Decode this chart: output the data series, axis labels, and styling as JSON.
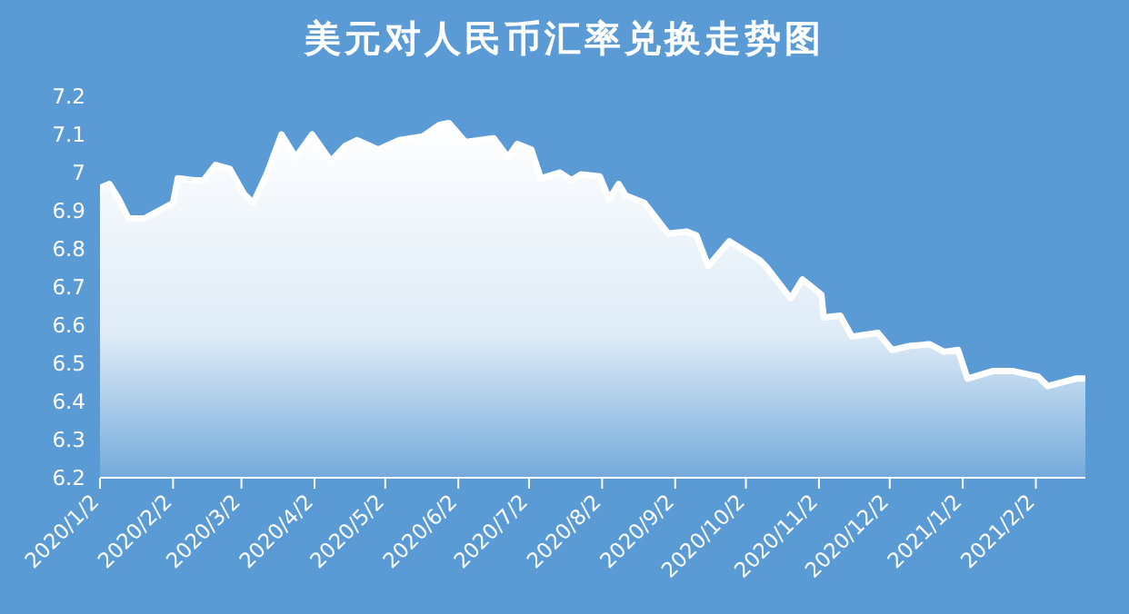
{
  "chart_data": {
    "type": "area",
    "title": "美元对人民币汇率兑换走势图",
    "x": [
      "2020-01-02",
      "2020-01-06",
      "2020-01-10",
      "2020-01-14",
      "2020-01-21",
      "2020-02-02",
      "2020-02-04",
      "2020-02-11",
      "2020-02-15",
      "2020-02-20",
      "2020-02-26",
      "2020-03-03",
      "2020-03-07",
      "2020-03-13",
      "2020-03-19",
      "2020-03-25",
      "2020-04-01",
      "2020-04-09",
      "2020-04-15",
      "2020-04-20",
      "2020-04-29",
      "2020-05-08",
      "2020-05-18",
      "2020-05-25",
      "2020-05-29",
      "2020-06-05",
      "2020-06-11",
      "2020-06-17",
      "2020-06-23",
      "2020-06-27",
      "2020-07-03",
      "2020-07-07",
      "2020-07-15",
      "2020-07-20",
      "2020-07-24",
      "2020-08-01",
      "2020-08-05",
      "2020-08-09",
      "2020-08-12",
      "2020-08-20",
      "2020-08-30",
      "2020-09-07",
      "2020-09-11",
      "2020-09-16",
      "2020-09-25",
      "2020-10-08",
      "2020-10-11",
      "2020-10-21",
      "2020-10-26",
      "2020-11-03",
      "2020-11-04",
      "2020-11-11",
      "2020-11-16",
      "2020-11-27",
      "2020-12-03",
      "2020-12-10",
      "2020-12-19",
      "2020-12-25",
      "2020-12-31",
      "2021-01-04",
      "2021-01-15",
      "2021-01-23",
      "2021-02-03",
      "2021-02-07",
      "2021-02-19",
      "2021-02-23"
    ],
    "series": [
      {
        "color": "#ffffff",
        "values": [
          6.96,
          6.97,
          6.93,
          6.88,
          6.88,
          6.92,
          6.985,
          6.98,
          6.98,
          7.02,
          7.01,
          6.945,
          6.92,
          7.0,
          7.1,
          7.04,
          7.1,
          7.03,
          7.07,
          7.085,
          7.06,
          7.085,
          7.095,
          7.125,
          7.13,
          7.08,
          7.085,
          7.09,
          7.04,
          7.075,
          7.06,
          6.985,
          7.0,
          6.98,
          6.995,
          6.99,
          6.93,
          6.97,
          6.94,
          6.92,
          6.84,
          6.845,
          6.835,
          6.755,
          6.82,
          6.77,
          6.75,
          6.67,
          6.72,
          6.68,
          6.62,
          6.625,
          6.57,
          6.58,
          6.535,
          6.545,
          6.55,
          6.53,
          6.535,
          6.46,
          6.48,
          6.48,
          6.465,
          6.44,
          6.46,
          6.46
        ]
      }
    ],
    "xlim": [
      "2020-01-02",
      "2021-02-23"
    ],
    "xticks": [
      {
        "value": "2020-01-02",
        "label": "2020/1/2"
      },
      {
        "value": "2020-02-02",
        "label": "2020/2/2"
      },
      {
        "value": "2020-03-02",
        "label": "2020/3/2"
      },
      {
        "value": "2020-04-02",
        "label": "2020/4/2"
      },
      {
        "value": "2020-05-02",
        "label": "2020/5/2"
      },
      {
        "value": "2020-06-02",
        "label": "2020/6/2"
      },
      {
        "value": "2020-07-02",
        "label": "2020/7/2"
      },
      {
        "value": "2020-08-02",
        "label": "2020/8/2"
      },
      {
        "value": "2020-09-02",
        "label": "2020/9/2"
      },
      {
        "value": "2020-10-02",
        "label": "2020/10/2"
      },
      {
        "value": "2020-11-02",
        "label": "2020/11/2"
      },
      {
        "value": "2020-12-02",
        "label": "2020/12/2"
      },
      {
        "value": "2021-01-02",
        "label": "2021/1/2"
      },
      {
        "value": "2021-02-02",
        "label": "2021/2/2"
      }
    ],
    "ylim": [
      6.2,
      7.2
    ],
    "yticks": [
      6.2,
      6.3,
      6.4,
      6.5,
      6.6,
      6.7,
      6.8,
      6.9,
      7,
      7.1,
      7.2
    ],
    "grid": false,
    "legend": false
  }
}
